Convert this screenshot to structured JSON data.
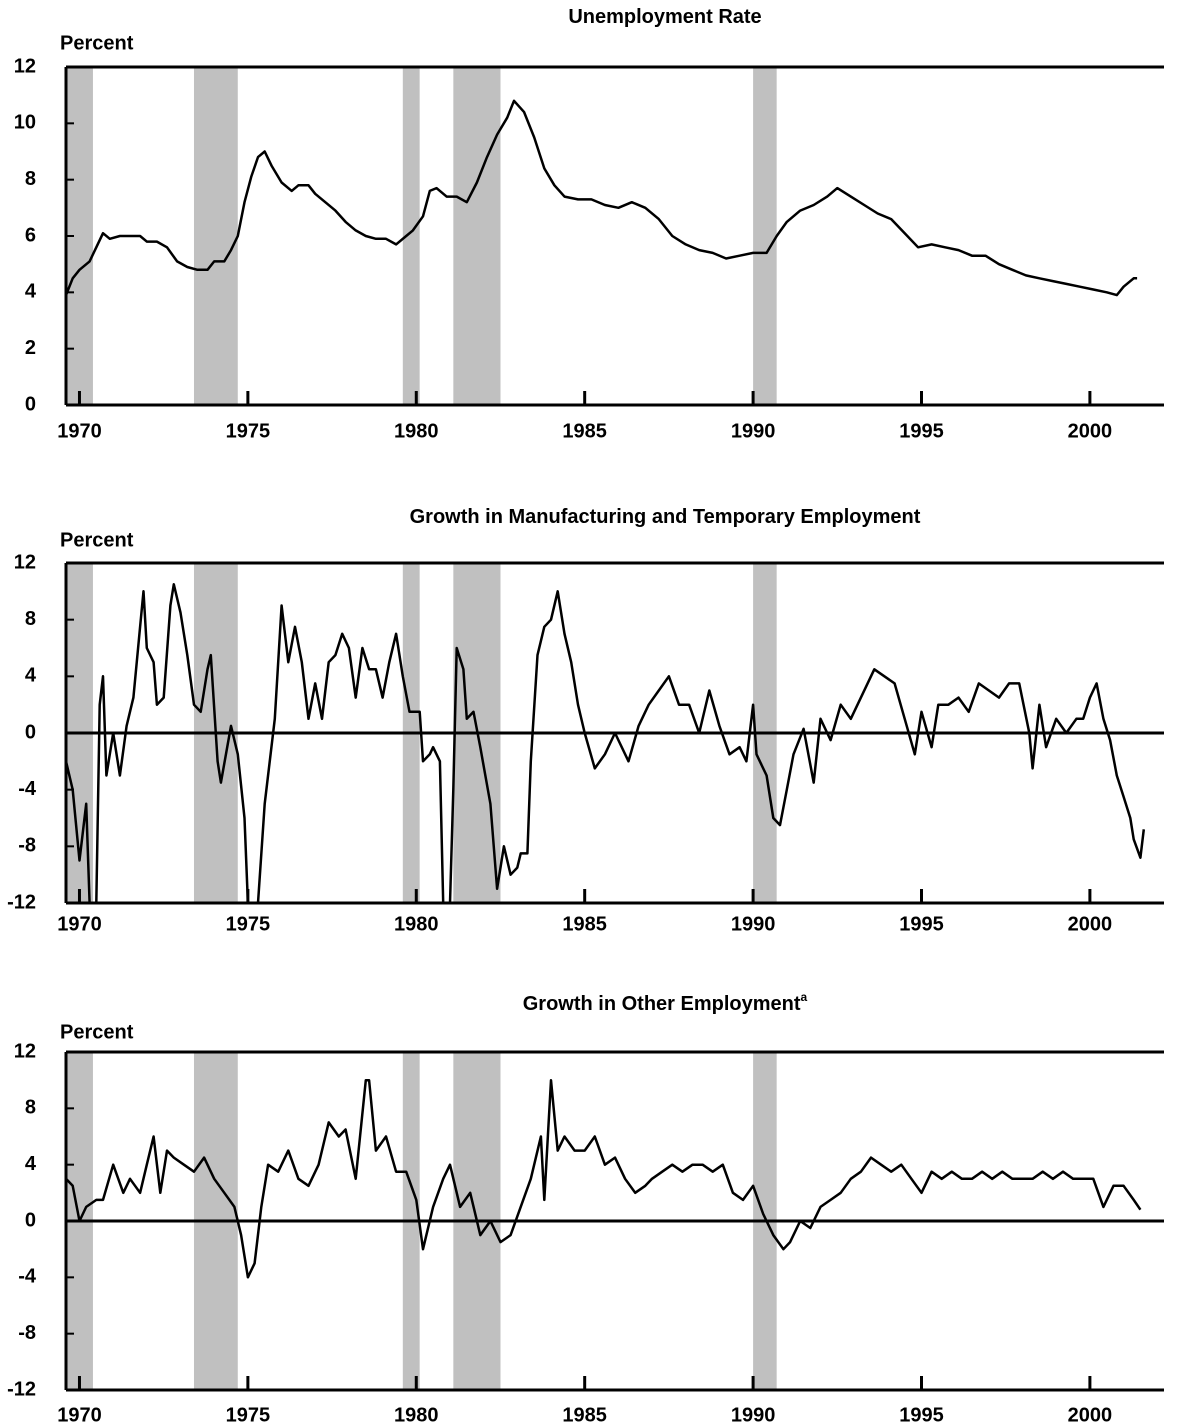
{
  "chart_data": [
    {
      "type": "line",
      "title": "Unemployment Rate",
      "y_label": "Percent",
      "x": [
        1969.6,
        1969.8,
        1970.0,
        1970.3,
        1970.5,
        1970.7,
        1970.9,
        1971.2,
        1971.5,
        1971.8,
        1972.0,
        1972.3,
        1972.6,
        1972.9,
        1973.2,
        1973.5,
        1973.8,
        1974.0,
        1974.3,
        1974.5,
        1974.7,
        1974.9,
        1975.1,
        1975.3,
        1975.5,
        1975.7,
        1976.0,
        1976.3,
        1976.5,
        1976.8,
        1977.0,
        1977.3,
        1977.6,
        1977.9,
        1978.2,
        1978.5,
        1978.8,
        1979.1,
        1979.4,
        1979.7,
        1979.9,
        1980.2,
        1980.4,
        1980.6,
        1980.9,
        1981.2,
        1981.5,
        1981.8,
        1982.1,
        1982.4,
        1982.7,
        1982.9,
        1983.2,
        1983.5,
        1983.8,
        1984.1,
        1984.4,
        1984.8,
        1985.2,
        1985.6,
        1986.0,
        1986.4,
        1986.8,
        1987.2,
        1987.6,
        1988.0,
        1988.4,
        1988.8,
        1989.2,
        1989.6,
        1990.0,
        1990.4,
        1990.7,
        1991.0,
        1991.4,
        1991.8,
        1992.2,
        1992.5,
        1992.9,
        1993.3,
        1993.7,
        1994.1,
        1994.5,
        1994.9,
        1995.3,
        1995.7,
        1996.1,
        1996.5,
        1996.9,
        1997.3,
        1997.7,
        1998.1,
        1998.5,
        1998.9,
        1999.3,
        1999.7,
        2000.1,
        2000.5,
        2000.8,
        2001.0,
        2001.3,
        2001.4
      ],
      "series": [
        {
          "color": "#000000",
          "values": [
            3.9,
            4.5,
            4.8,
            5.1,
            5.6,
            6.1,
            5.9,
            6.0,
            6.0,
            6.0,
            5.8,
            5.8,
            5.6,
            5.1,
            4.9,
            4.8,
            4.8,
            5.1,
            5.1,
            5.5,
            6.0,
            7.2,
            8.1,
            8.8,
            9.0,
            8.5,
            7.9,
            7.6,
            7.8,
            7.8,
            7.5,
            7.2,
            6.9,
            6.5,
            6.2,
            6.0,
            5.9,
            5.9,
            5.7,
            6.0,
            6.2,
            6.7,
            7.6,
            7.7,
            7.4,
            7.4,
            7.2,
            7.9,
            8.8,
            9.6,
            10.2,
            10.8,
            10.4,
            9.5,
            8.4,
            7.8,
            7.4,
            7.3,
            7.3,
            7.1,
            7.0,
            7.2,
            7.0,
            6.6,
            6.0,
            5.7,
            5.5,
            5.4,
            5.2,
            5.3,
            5.4,
            5.4,
            6.0,
            6.5,
            6.9,
            7.1,
            7.4,
            7.7,
            7.4,
            7.1,
            6.8,
            6.6,
            6.1,
            5.6,
            5.7,
            5.6,
            5.5,
            5.3,
            5.3,
            5.0,
            4.8,
            4.6,
            4.5,
            4.4,
            4.3,
            4.2,
            4.1,
            4.0,
            3.9,
            4.2,
            4.5,
            4.5
          ]
        }
      ],
      "xlim": [
        1969.6,
        2002.2
      ],
      "xticks": [
        1970,
        1975,
        1980,
        1985,
        1990,
        1995,
        2000
      ],
      "ylim": [
        0,
        12
      ],
      "yticks": [
        0,
        2,
        4,
        6,
        8,
        10,
        12
      ],
      "recessions": [
        [
          1969.6,
          1970.4
        ],
        [
          1973.4,
          1974.7
        ],
        [
          1979.6,
          1980.1
        ],
        [
          1981.1,
          1982.5
        ],
        [
          1990.0,
          1990.7
        ]
      ],
      "recession_color": "#c0c0c0"
    },
    {
      "type": "line",
      "title": "Growth in Manufacturing and Temporary Employment",
      "y_label": "Percent",
      "x": [
        1969.6,
        1969.8,
        1970.0,
        1970.2,
        1970.3,
        1970.5,
        1970.6,
        1970.7,
        1970.8,
        1971.0,
        1971.2,
        1971.4,
        1971.6,
        1971.8,
        1971.9,
        1972.0,
        1972.2,
        1972.3,
        1972.5,
        1972.7,
        1972.8,
        1973.0,
        1973.2,
        1973.4,
        1973.6,
        1973.8,
        1973.9,
        1974.1,
        1974.2,
        1974.5,
        1974.7,
        1974.9,
        1975.0,
        1975.3,
        1975.5,
        1975.8,
        1976.0,
        1976.2,
        1976.4,
        1976.6,
        1976.8,
        1977.0,
        1977.2,
        1977.4,
        1977.6,
        1977.8,
        1978.0,
        1978.2,
        1978.4,
        1978.6,
        1978.8,
        1979.0,
        1979.2,
        1979.4,
        1979.6,
        1979.8,
        1980.1,
        1980.2,
        1980.4,
        1980.5,
        1980.7,
        1980.8,
        1981.0,
        1981.1,
        1981.2,
        1981.4,
        1981.5,
        1981.7,
        1981.9,
        1982.2,
        1982.4,
        1982.6,
        1982.8,
        1983.0,
        1983.1,
        1983.3,
        1983.4,
        1983.6,
        1983.8,
        1984.0,
        1984.2,
        1984.4,
        1984.6,
        1984.8,
        1985.0,
        1985.3,
        1985.6,
        1985.9,
        1986.3,
        1986.6,
        1986.9,
        1987.2,
        1987.5,
        1987.8,
        1988.1,
        1988.4,
        1988.7,
        1989.0,
        1989.3,
        1989.6,
        1989.8,
        1990.0,
        1990.1,
        1990.4,
        1990.6,
        1990.8,
        1991.0,
        1991.2,
        1991.5,
        1991.8,
        1992.0,
        1992.3,
        1992.6,
        1992.9,
        1993.2,
        1993.6,
        1993.9,
        1994.2,
        1994.5,
        1994.8,
        1995.0,
        1995.3,
        1995.5,
        1995.8,
        1996.1,
        1996.4,
        1996.7,
        1997.0,
        1997.3,
        1997.6,
        1997.9,
        1998.2,
        1998.3,
        1998.5,
        1998.7,
        1999.0,
        1999.3,
        1999.6,
        1999.8,
        2000.0,
        2000.2,
        2000.4,
        2000.6,
        2000.8,
        2001.0,
        2001.2,
        2001.3,
        2001.5,
        2001.6
      ],
      "series": [
        {
          "color": "#000000",
          "values": [
            -2,
            -4,
            -9,
            -5,
            -12,
            -12,
            2,
            4,
            -3,
            0,
            -3,
            0.5,
            2.5,
            7.5,
            10,
            6,
            5,
            2,
            2.5,
            9,
            10.5,
            8.5,
            5.5,
            2,
            1.5,
            4.5,
            5.5,
            -2,
            -3.5,
            0.5,
            -1.5,
            -6,
            -12,
            -12,
            -5,
            1,
            9,
            5,
            7.5,
            5,
            1,
            3.5,
            1,
            5,
            5.5,
            7,
            6,
            2.5,
            6,
            4.5,
            4.5,
            2.5,
            5,
            7,
            4,
            1.5,
            1.5,
            -2,
            -1.5,
            -1,
            -2,
            -12,
            -12,
            -4,
            6,
            4.5,
            1,
            1.5,
            -1,
            -5,
            -11,
            -8,
            -10,
            -9.5,
            -8.5,
            -8.5,
            -2,
            5.5,
            7.5,
            8,
            10,
            7,
            5,
            2,
            0,
            -2.5,
            -1.5,
            0,
            -2,
            0.5,
            2,
            3,
            4,
            2,
            2,
            0,
            3,
            0.5,
            -1.5,
            -1,
            -2,
            2,
            -1.5,
            -3,
            -6,
            -6.5,
            -4,
            -1.5,
            0.3,
            -3.5,
            1,
            -0.5,
            2,
            1,
            2.5,
            4.5,
            4,
            3.5,
            1,
            -1.5,
            1.5,
            -1,
            2,
            2,
            2.5,
            1.5,
            3.5,
            3,
            2.5,
            3.5,
            3.5,
            0,
            -2.5,
            2,
            -1,
            1,
            0,
            1,
            1,
            2.5,
            3.5,
            1,
            -0.5,
            -3,
            -4.5,
            -6,
            -7.5,
            -8.8,
            -6.8
          ]
        }
      ],
      "xlim": [
        1969.6,
        2002.2
      ],
      "xticks": [
        1970,
        1975,
        1980,
        1985,
        1990,
        1995,
        2000
      ],
      "ylim": [
        -12,
        12
      ],
      "yticks": [
        -12,
        -8,
        -4,
        0,
        4,
        8,
        12
      ],
      "recessions": [
        [
          1969.6,
          1970.4
        ],
        [
          1973.4,
          1974.7
        ],
        [
          1979.6,
          1980.1
        ],
        [
          1981.1,
          1982.5
        ],
        [
          1990.0,
          1990.7
        ]
      ],
      "recession_color": "#c0c0c0"
    },
    {
      "type": "line",
      "title": "Growth in Other Employment",
      "title_note": "a",
      "y_label": "Percent",
      "x": [
        1969.6,
        1969.8,
        1970.0,
        1970.2,
        1970.5,
        1970.7,
        1971.0,
        1971.3,
        1971.5,
        1971.8,
        1972.0,
        1972.2,
        1972.4,
        1972.6,
        1972.8,
        1973.1,
        1973.4,
        1973.7,
        1974.0,
        1974.3,
        1974.6,
        1974.8,
        1975.0,
        1975.2,
        1975.4,
        1975.6,
        1975.9,
        1976.2,
        1976.5,
        1976.8,
        1977.1,
        1977.4,
        1977.7,
        1977.9,
        1978.2,
        1978.5,
        1978.6,
        1978.8,
        1979.1,
        1979.4,
        1979.7,
        1980.0,
        1980.2,
        1980.5,
        1980.8,
        1981.0,
        1981.3,
        1981.6,
        1981.9,
        1982.2,
        1982.5,
        1982.8,
        1983.1,
        1983.4,
        1983.7,
        1983.8,
        1984.0,
        1984.2,
        1984.4,
        1984.7,
        1985.0,
        1985.3,
        1985.6,
        1985.9,
        1986.2,
        1986.5,
        1986.8,
        1987.0,
        1987.3,
        1987.6,
        1987.9,
        1988.2,
        1988.5,
        1988.8,
        1989.1,
        1989.4,
        1989.7,
        1990.0,
        1990.3,
        1990.6,
        1990.9,
        1991.1,
        1991.4,
        1991.7,
        1992.0,
        1992.3,
        1992.6,
        1992.9,
        1993.2,
        1993.5,
        1993.8,
        1994.1,
        1994.4,
        1994.7,
        1995.0,
        1995.3,
        1995.6,
        1995.9,
        1996.2,
        1996.5,
        1996.8,
        1997.1,
        1997.4,
        1997.7,
        1998.0,
        1998.3,
        1998.6,
        1998.9,
        1999.2,
        1999.5,
        1999.8,
        2000.1,
        2000.4,
        2000.7,
        2001.0,
        2001.3,
        2001.5
      ],
      "series": [
        {
          "color": "#000000",
          "values": [
            3,
            2.5,
            0,
            1,
            1.5,
            1.5,
            4,
            2,
            3,
            2,
            4,
            6,
            2,
            5,
            4.5,
            4,
            3.5,
            4.5,
            3,
            2,
            1,
            -1,
            -4,
            -3,
            1,
            4,
            3.5,
            5,
            3,
            2.5,
            4,
            7,
            6,
            6.5,
            3,
            10,
            10,
            5,
            6,
            3.5,
            3.5,
            1.5,
            -2,
            1,
            3,
            4,
            1,
            2,
            -1,
            0,
            -1.5,
            -1,
            1,
            3,
            6,
            1.5,
            10,
            5,
            6,
            5,
            5,
            6,
            4,
            4.5,
            3,
            2,
            2.5,
            3,
            3.5,
            4,
            3.5,
            4,
            4,
            3.5,
            4,
            2,
            1.5,
            2.5,
            0.5,
            -1,
            -2,
            -1.5,
            0,
            -0.5,
            1,
            1.5,
            2,
            3,
            3.5,
            4.5,
            4,
            3.5,
            4,
            3,
            2,
            3.5,
            3,
            3.5,
            3,
            3,
            3.5,
            3,
            3.5,
            3,
            3,
            3,
            3.5,
            3,
            3.5,
            3,
            3,
            3,
            1,
            2.5,
            2.5,
            1.5,
            0.8
          ]
        }
      ],
      "xlim": [
        1969.6,
        2002.2
      ],
      "xticks": [
        1970,
        1975,
        1980,
        1985,
        1990,
        1995,
        2000
      ],
      "ylim": [
        -12,
        12
      ],
      "yticks": [
        -12,
        -8,
        -4,
        0,
        4,
        8,
        12
      ],
      "recessions": [
        [
          1969.6,
          1970.4
        ],
        [
          1973.4,
          1974.7
        ],
        [
          1979.6,
          1980.1
        ],
        [
          1981.1,
          1982.5
        ],
        [
          1990.0,
          1990.7
        ]
      ],
      "recession_color": "#c0c0c0"
    }
  ]
}
